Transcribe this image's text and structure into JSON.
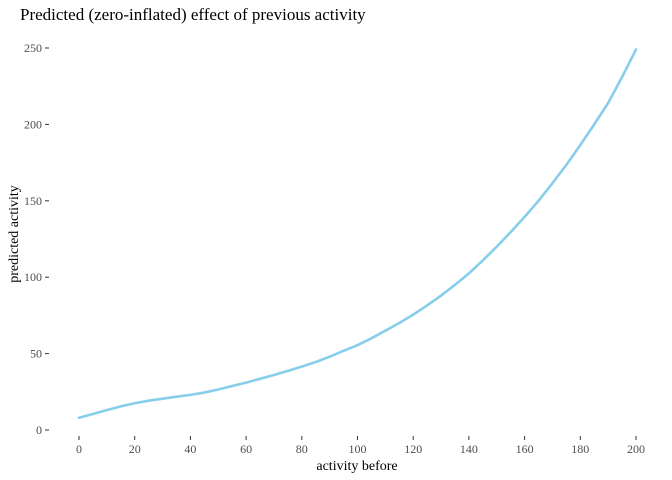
{
  "chart_data": {
    "type": "line",
    "title": "Predicted (zero-inflated) effect of previous activity",
    "xlabel": "activity before",
    "ylabel": "predicted activity",
    "xlim": [
      0,
      200
    ],
    "ylim": [
      0,
      250
    ],
    "xticks": [
      0,
      20,
      40,
      60,
      80,
      100,
      120,
      140,
      160,
      180,
      200
    ],
    "yticks": [
      0,
      50,
      100,
      150,
      200,
      250
    ],
    "grid": false,
    "legend": "none",
    "line_color": "#87CEEB",
    "series": [
      {
        "x": [
          0,
          5,
          10,
          15,
          20,
          25,
          30,
          35,
          40,
          45,
          50,
          55,
          60,
          65,
          70,
          75,
          80,
          85,
          90,
          95,
          100,
          105,
          110,
          115,
          120,
          125,
          130,
          135,
          140,
          145,
          150,
          155,
          160,
          165,
          170,
          175,
          180,
          185,
          190,
          195,
          200
        ],
        "y": [
          8,
          10.5,
          13,
          15.5,
          17.5,
          19.2,
          20.5,
          21.8,
          23,
          24.5,
          26.5,
          28.8,
          31,
          33.5,
          36,
          38.7,
          41.5,
          44.5,
          48,
          51.8,
          55.5,
          60,
          65,
          70,
          75.5,
          81.5,
          88,
          95,
          102.5,
          111,
          120,
          129.5,
          139.5,
          150,
          161.5,
          173.5,
          186.5,
          200,
          214,
          231,
          249
        ]
      }
    ]
  }
}
